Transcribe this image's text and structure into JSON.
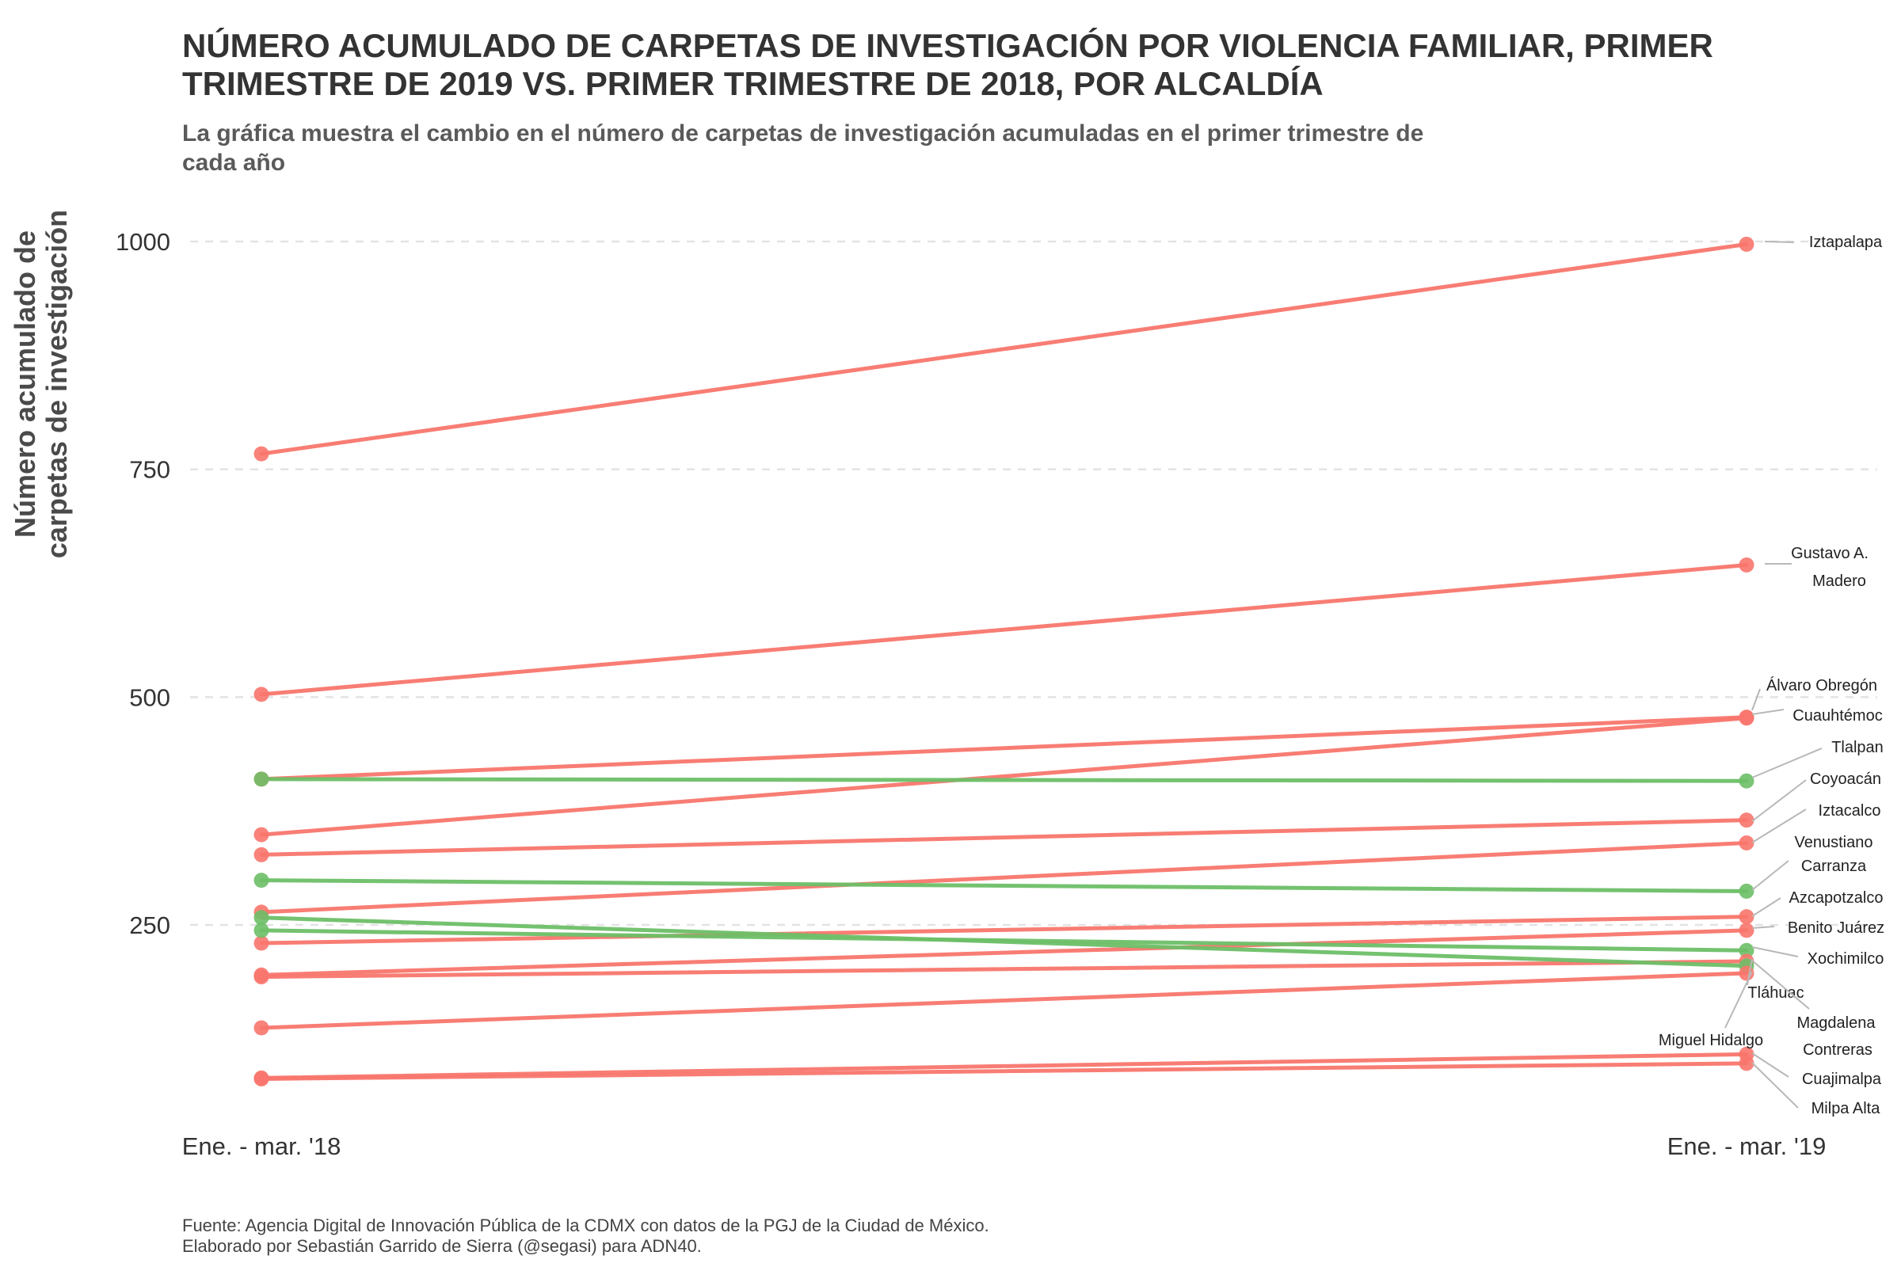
{
  "chart_data": {
    "type": "line",
    "title": "NÚMERO ACUMULADO DE CARPETAS DE INVESTIGACIÓN POR VIOLENCIA FAMILIAR, PRIMER TRIMESTRE DE 2019 VS. PRIMER TRIMESTRE DE 2018, POR ALCALDÍA",
    "subtitle": "La gráfica muestra el cambio en el número de carpetas de investigación acumuladas en el primer trimestre de cada año",
    "xlabel": "",
    "ylabel": [
      "Número acumulado de",
      "carpetas de investigación"
    ],
    "categories": [
      "Ene. - mar. '18",
      "Ene. - mar. '19"
    ],
    "y_ticks": [
      250,
      500,
      750,
      1000
    ],
    "ylim": [
      40,
      1040
    ],
    "grid": "horizontal dashed",
    "colors": {
      "increase": "#f8766d",
      "decrease": "#6dbf67"
    },
    "series": [
      {
        "name": "Iztapalapa",
        "values": [
          767,
          997
        ],
        "trend": "increase",
        "label_lines": [
          "Iztapalapa"
        ]
      },
      {
        "name": "Gustavo A. Madero",
        "values": [
          503,
          645
        ],
        "trend": "increase",
        "label_lines": [
          "Gustavo A.",
          "Madero"
        ]
      },
      {
        "name": "Álvaro Obregón",
        "values": [
          410,
          478
        ],
        "trend": "increase",
        "label_lines": [
          "Álvaro Obregón"
        ]
      },
      {
        "name": "Cuauhtémoc",
        "values": [
          349,
          477
        ],
        "trend": "increase",
        "label_lines": [
          "Cuauhtémoc"
        ]
      },
      {
        "name": "Tlalpan",
        "values": [
          410,
          408
        ],
        "trend": "decrease",
        "label_lines": [
          "Tlalpan"
        ]
      },
      {
        "name": "Coyoacán",
        "values": [
          327,
          365
        ],
        "trend": "increase",
        "label_lines": [
          "Coyoacán"
        ]
      },
      {
        "name": "Iztacalco",
        "values": [
          264,
          340
        ],
        "trend": "increase",
        "label_lines": [
          "Iztacalco"
        ]
      },
      {
        "name": "Venustiano Carranza",
        "values": [
          299,
          287
        ],
        "trend": "decrease",
        "label_lines": [
          "Venustiano",
          "Carranza"
        ]
      },
      {
        "name": "Azcapotzalco",
        "values": [
          230,
          259
        ],
        "trend": "increase",
        "label_lines": [
          "Azcapotzalco"
        ]
      },
      {
        "name": "Benito Juárez",
        "values": [
          195,
          244
        ],
        "trend": "increase",
        "label_lines": [
          "Benito Juárez"
        ]
      },
      {
        "name": "Xochimilco",
        "values": [
          244,
          222
        ],
        "trend": "decrease",
        "label_lines": [
          "Xochimilco"
        ]
      },
      {
        "name": "Tláhuac",
        "values": [
          193,
          210
        ],
        "trend": "increase",
        "label_lines": [
          "Tláhuac"
        ]
      },
      {
        "name": "Magdalena Contreras",
        "values": [
          258,
          205
        ],
        "trend": "decrease",
        "label_lines": [
          "Magdalena",
          "Contreras"
        ]
      },
      {
        "name": "Miguel Hidalgo",
        "values": [
          137,
          197
        ],
        "trend": "increase",
        "label_lines": [
          "Miguel Hidalgo"
        ]
      },
      {
        "name": "Cuajimalpa",
        "values": [
          82,
          108
        ],
        "trend": "increase",
        "label_lines": [
          "Cuajimalpa"
        ]
      },
      {
        "name": "Milpa Alta",
        "values": [
          81,
          98
        ],
        "trend": "increase",
        "label_lines": [
          "Milpa Alta"
        ]
      }
    ]
  },
  "caption": {
    "line1": "Fuente: Agencia Digital de Innovación Pública de la CDMX con datos de la PGJ de la Ciudad de México.",
    "line2": "Elaborado por Sebastián Garrido de Sierra (@segasi) para ADN40."
  }
}
